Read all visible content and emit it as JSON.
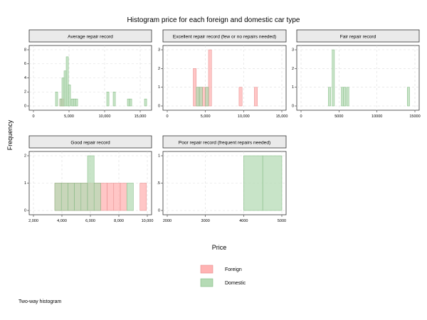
{
  "chart_data": {
    "type": "bar",
    "title": "Histogram price for each foreign and domestic car type",
    "xlabel": "Price",
    "ylabel": "Frequency",
    "note": "Two-way histogram",
    "legend": {
      "placement": "bottom",
      "entries": [
        "Foreign",
        "Domestic"
      ]
    },
    "colors": {
      "Foreign": "#ffb3b3",
      "Domestic": "#b5dbb5",
      "overlap": "#b4a07f",
      "grid": "#dddddd",
      "strip": "#eaeaea"
    },
    "panels": [
      {
        "title": "Average repair record",
        "xlim": [
          0,
          16000
        ],
        "xticks": [
          0,
          5000,
          10000,
          15000
        ],
        "xtick_labels": [
          "0",
          "5,000",
          "10,000",
          "15,000"
        ],
        "ylim": [
          0,
          8
        ],
        "yticks": [
          0,
          2,
          4,
          6,
          8
        ],
        "ytick_labels": [
          "0",
          "2",
          "4",
          "6",
          "8"
        ],
        "bin_width": 310,
        "series": [
          {
            "name": "Foreign",
            "bins": [
              [
                3700,
                1
              ],
              [
                4000,
                1
              ]
            ]
          },
          {
            "name": "Domestic",
            "bins": [
              [
                3100,
                2
              ],
              [
                3700,
                1
              ],
              [
                4000,
                4
              ],
              [
                4300,
                5
              ],
              [
                4600,
                7
              ],
              [
                4900,
                3
              ],
              [
                5300,
                1
              ],
              [
                5600,
                1
              ],
              [
                5900,
                1
              ],
              [
                10300,
                2
              ],
              [
                11200,
                2
              ],
              [
                13200,
                1
              ],
              [
                13500,
                1
              ],
              [
                15600,
                1
              ]
            ]
          }
        ]
      },
      {
        "title": "Excellent repair record (few or no repairs needed)",
        "xlim": [
          0,
          15000
        ],
        "xticks": [
          0,
          5000,
          10000,
          15000
        ],
        "xtick_labels": [
          "0",
          "5,000",
          "10,000",
          "15,000"
        ],
        "ylim": [
          0,
          3
        ],
        "yticks": [
          0,
          1,
          2,
          3
        ],
        "ytick_labels": [
          "0",
          "1",
          "2",
          "3"
        ],
        "bin_width": 400,
        "series": [
          {
            "name": "Foreign",
            "bins": [
              [
                3400,
                2
              ],
              [
                3800,
                1
              ],
              [
                4200,
                1
              ],
              [
                4600,
                1
              ],
              [
                5000,
                1
              ],
              [
                5400,
                3
              ],
              [
                9400,
                1
              ],
              [
                11400,
                1
              ]
            ]
          },
          {
            "name": "Domestic",
            "bins": [
              [
                3800,
                1
              ],
              [
                4200,
                1
              ],
              [
                5000,
                1
              ]
            ]
          }
        ]
      },
      {
        "title": "Fair repair record",
        "xlim": [
          0,
          15000
        ],
        "xticks": [
          0,
          5000,
          10000,
          15000
        ],
        "xtick_labels": [
          "0",
          "5000",
          "10000",
          "15000"
        ],
        "ylim": [
          0,
          3
        ],
        "yticks": [
          0,
          1,
          2,
          3
        ],
        "ytick_labels": [
          "0",
          "1",
          "2",
          "3"
        ],
        "bin_width": 300,
        "series": [
          {
            "name": "Foreign",
            "bins": []
          },
          {
            "name": "Domestic",
            "bins": [
              [
                3600,
                1
              ],
              [
                4100,
                3
              ],
              [
                5300,
                1
              ],
              [
                5600,
                1
              ],
              [
                6000,
                1
              ],
              [
                14000,
                1
              ]
            ]
          }
        ]
      },
      {
        "title": "Good repair record",
        "xlim": [
          2000,
          10000
        ],
        "xticks": [
          2000,
          4000,
          6000,
          8000,
          10000
        ],
        "xtick_labels": [
          "2,000",
          "4,000",
          "6,000",
          "8,000",
          "10,000"
        ],
        "ylim": [
          0,
          2
        ],
        "yticks": [
          0,
          1,
          2
        ],
        "ytick_labels": [
          "0",
          "1",
          "2"
        ],
        "bin_width": 460,
        "series": [
          {
            "name": "Foreign",
            "bins": [
              [
                3500,
                1
              ],
              [
                3960,
                1
              ],
              [
                4420,
                1
              ],
              [
                4880,
                1
              ],
              [
                5340,
                1
              ],
              [
                5800,
                1
              ],
              [
                6260,
                1
              ],
              [
                6720,
                1
              ],
              [
                7180,
                1
              ],
              [
                7640,
                1
              ],
              [
                8100,
                1
              ],
              [
                9480,
                1
              ]
            ]
          },
          {
            "name": "Domestic",
            "bins": [
              [
                3500,
                1
              ],
              [
                3960,
                1
              ],
              [
                4420,
                1
              ],
              [
                4880,
                1
              ],
              [
                5340,
                1
              ],
              [
                5800,
                2
              ],
              [
                6260,
                1
              ],
              [
                8560,
                1
              ]
            ]
          }
        ]
      },
      {
        "title": "Poor repair record (frequent repairs needed)",
        "xlim": [
          2000,
          5000
        ],
        "xticks": [
          2000,
          3000,
          4000,
          5000
        ],
        "xtick_labels": [
          "2000",
          "3000",
          "4000",
          "5000"
        ],
        "ylim": [
          0,
          1
        ],
        "yticks": [
          0,
          0.5,
          1
        ],
        "ytick_labels": [
          "0",
          ".5",
          "1"
        ],
        "bin_width": 500,
        "series": [
          {
            "name": "Foreign",
            "bins": []
          },
          {
            "name": "Domestic",
            "bins": [
              [
                4000,
                1
              ],
              [
                4500,
                1
              ]
            ]
          }
        ]
      }
    ]
  }
}
